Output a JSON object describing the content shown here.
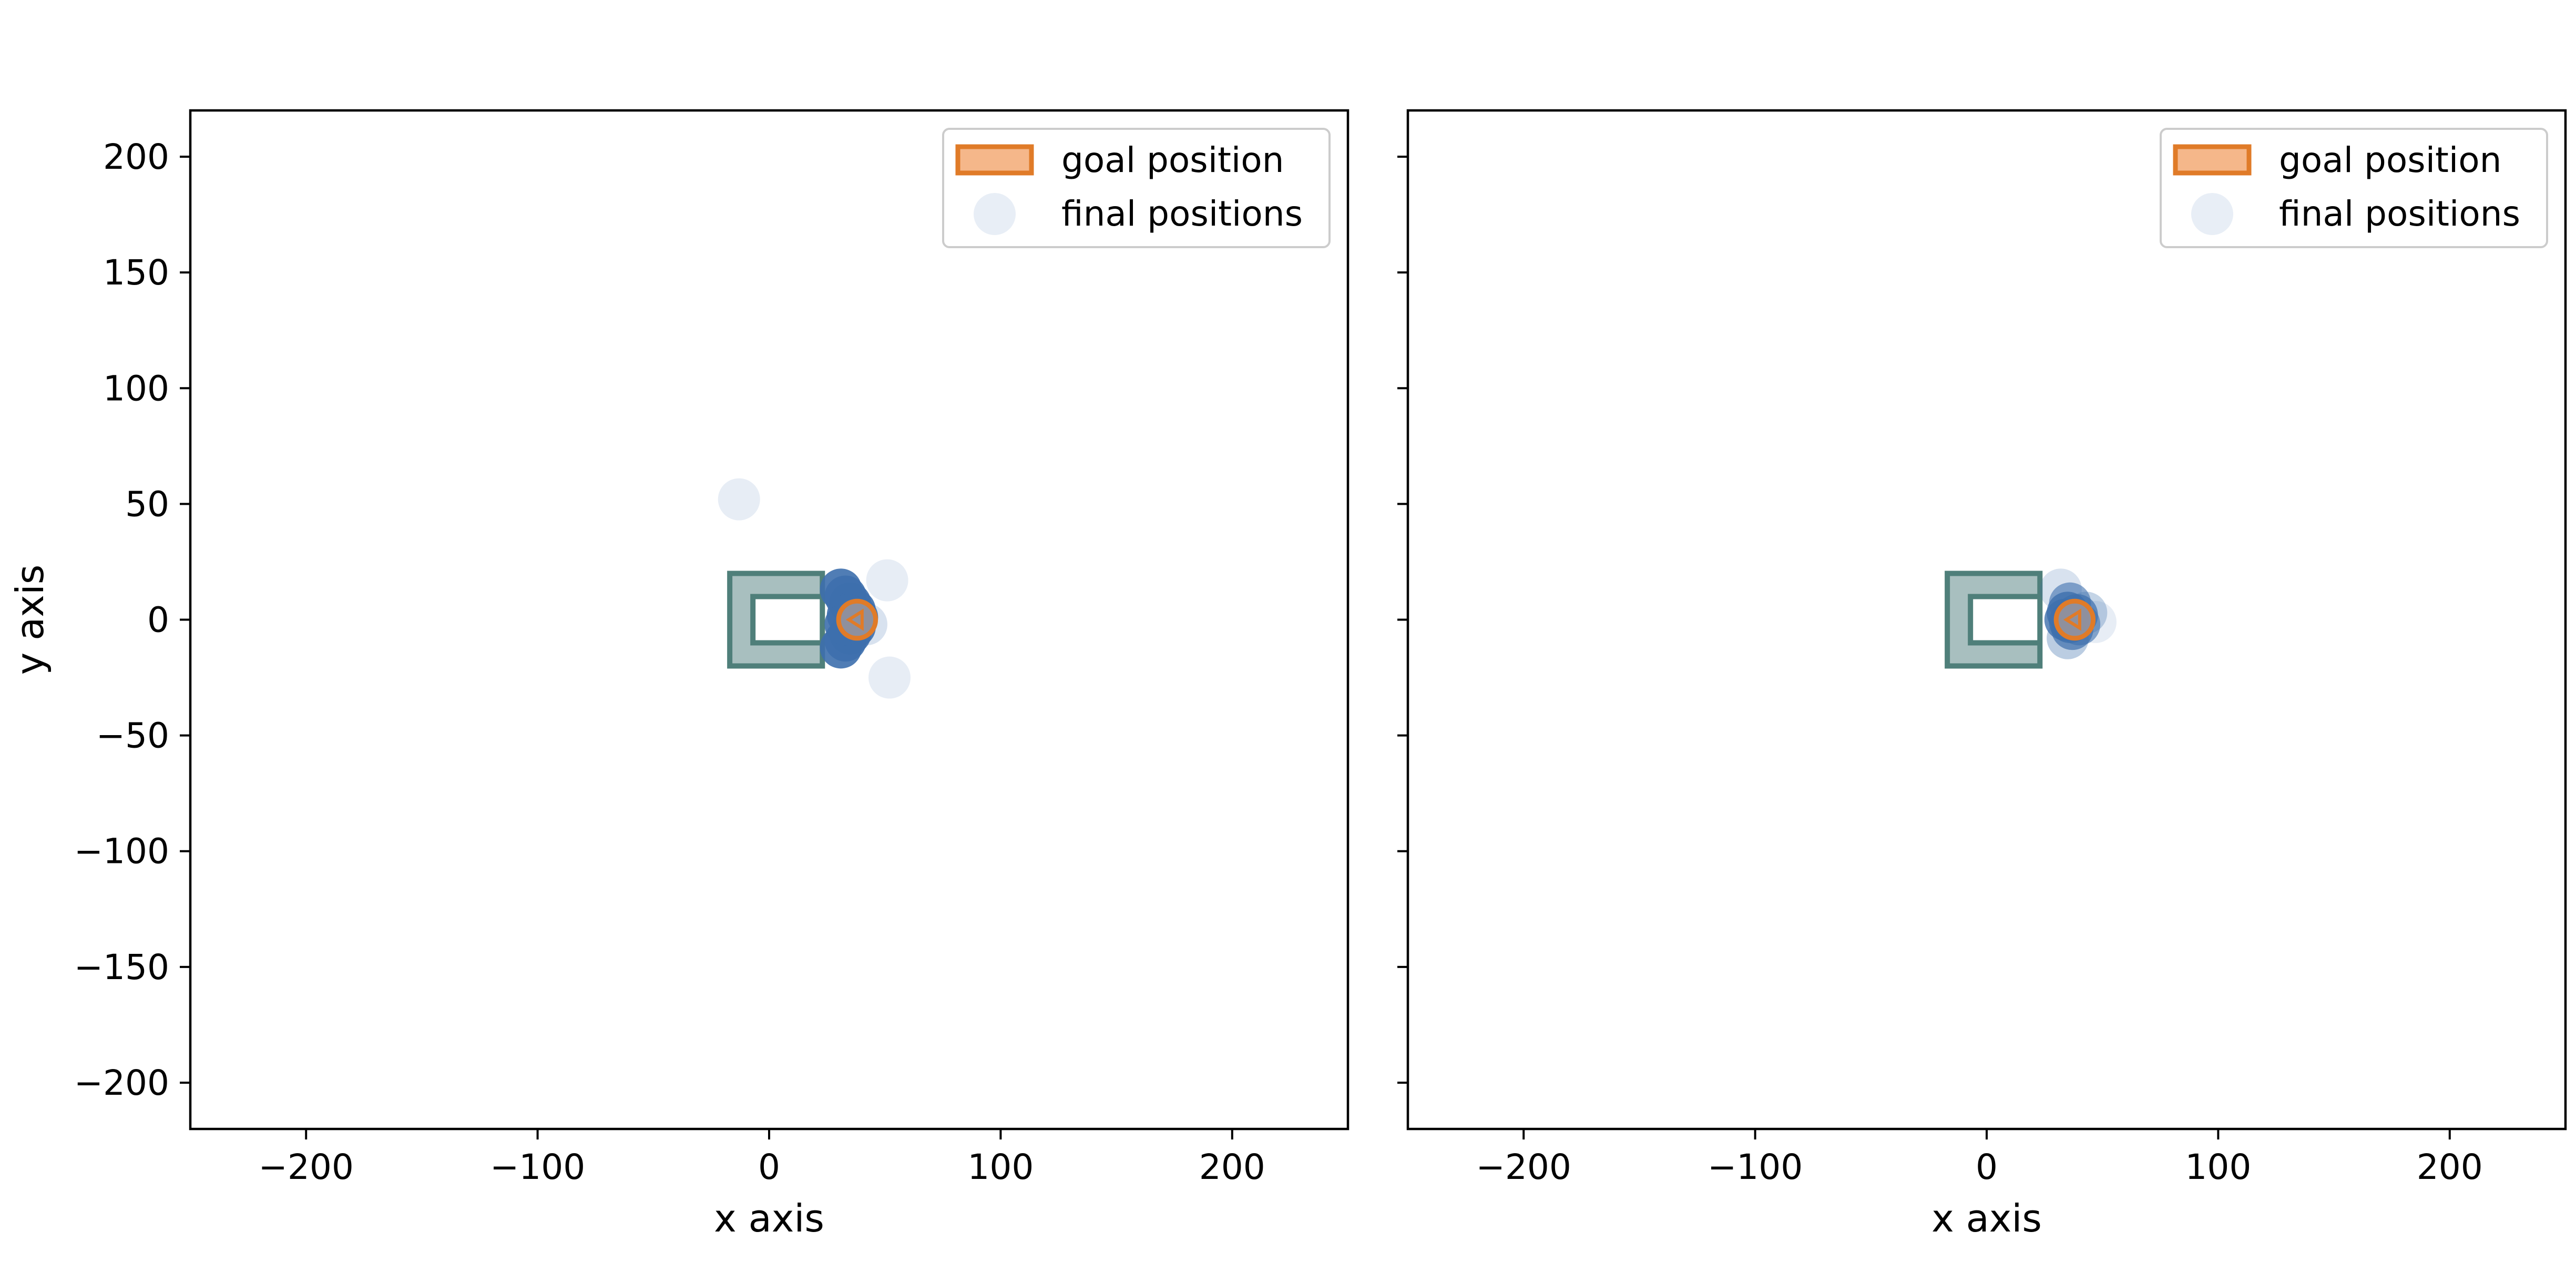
{
  "colors": {
    "goal_face": "#f5b78a",
    "goal_edge": "#e07b28",
    "final_point": "#3d6fad",
    "legend_point": "#e8eef6",
    "gripper_face": "#a8bfbf",
    "gripper_edge": "#4f7f7a"
  },
  "chart_data": [
    {
      "type": "scatter",
      "panel": "left",
      "xlabel": "x axis",
      "ylabel": "y axis",
      "xlim": [
        -250,
        250
      ],
      "ylim": [
        -220,
        220
      ],
      "xticks": [
        -200,
        -100,
        0,
        100,
        200
      ],
      "xtick_labels": [
        "−200",
        "−100",
        "0",
        "100",
        "200"
      ],
      "yticks": [
        200,
        150,
        100,
        50,
        0,
        -50,
        -100,
        -150,
        -200
      ],
      "ytick_labels": [
        "200",
        "150",
        "100",
        "50",
        "0",
        "−50",
        "−100",
        "−150",
        "−200"
      ],
      "show_ytick_labels": true,
      "grid": false,
      "legend_position": "top-right",
      "legend": [
        {
          "label": "goal position",
          "kind": "rect"
        },
        {
          "label": "final positions",
          "kind": "circle"
        }
      ],
      "obstacle": {
        "outer": [
          [
            -17,
            20
          ],
          [
            23,
            20
          ],
          [
            23,
            -20
          ],
          [
            -17,
            -20
          ]
        ],
        "inner": [
          [
            -7,
            10
          ],
          [
            23,
            10
          ],
          [
            23,
            -10
          ],
          [
            -7,
            -10
          ]
        ]
      },
      "goal": {
        "x": 38,
        "y": 0,
        "radius": 8
      },
      "final_positions": [
        {
          "x": -13,
          "y": 52,
          "opacity": 0.12
        },
        {
          "x": 51,
          "y": 17,
          "opacity": 0.12
        },
        {
          "x": 52,
          "y": -25,
          "opacity": 0.12
        },
        {
          "x": 42,
          "y": -2,
          "opacity": 0.2
        },
        {
          "x": 31,
          "y": 13,
          "opacity": 0.9
        },
        {
          "x": 33,
          "y": 10,
          "opacity": 0.9
        },
        {
          "x": 35,
          "y": 7,
          "opacity": 0.9
        },
        {
          "x": 37,
          "y": 4,
          "opacity": 0.9
        },
        {
          "x": 38,
          "y": 1,
          "opacity": 0.9
        },
        {
          "x": 37,
          "y": -3,
          "opacity": 0.9
        },
        {
          "x": 35,
          "y": -6,
          "opacity": 0.9
        },
        {
          "x": 33,
          "y": -9,
          "opacity": 0.9
        },
        {
          "x": 31,
          "y": -12,
          "opacity": 0.9
        },
        {
          "x": 34,
          "y": 2,
          "opacity": 0.9
        },
        {
          "x": 33,
          "y": -2,
          "opacity": 0.9
        }
      ]
    },
    {
      "type": "scatter",
      "panel": "right",
      "xlabel": "x axis",
      "ylabel": "",
      "xlim": [
        -250,
        250
      ],
      "ylim": [
        -220,
        220
      ],
      "xticks": [
        -200,
        -100,
        0,
        100,
        200
      ],
      "xtick_labels": [
        "−200",
        "−100",
        "0",
        "100",
        "200"
      ],
      "yticks": [
        200,
        150,
        100,
        50,
        0,
        -50,
        -100,
        -150,
        -200
      ],
      "ytick_labels": [],
      "show_ytick_labels": false,
      "grid": false,
      "legend_position": "top-right",
      "legend": [
        {
          "label": "goal position",
          "kind": "rect"
        },
        {
          "label": "final positions",
          "kind": "circle"
        }
      ],
      "obstacle": {
        "outer": [
          [
            -17,
            20
          ],
          [
            23,
            20
          ],
          [
            23,
            -20
          ],
          [
            -17,
            -20
          ]
        ],
        "inner": [
          [
            -7,
            10
          ],
          [
            23,
            10
          ],
          [
            23,
            -10
          ],
          [
            -7,
            -10
          ]
        ]
      },
      "goal": {
        "x": 38,
        "y": 0,
        "radius": 8
      },
      "final_positions": [
        {
          "x": 32,
          "y": 13,
          "opacity": 0.2
        },
        {
          "x": 47,
          "y": -1,
          "opacity": 0.12
        },
        {
          "x": 43,
          "y": 3,
          "opacity": 0.3
        },
        {
          "x": 35,
          "y": -8,
          "opacity": 0.35
        },
        {
          "x": 36,
          "y": 7,
          "opacity": 0.6
        },
        {
          "x": 35,
          "y": 3,
          "opacity": 0.8
        },
        {
          "x": 36,
          "y": -1,
          "opacity": 0.8
        },
        {
          "x": 37,
          "y": -4,
          "opacity": 0.7
        },
        {
          "x": 39,
          "y": 2,
          "opacity": 0.7
        },
        {
          "x": 40,
          "y": -2,
          "opacity": 0.6
        },
        {
          "x": 34,
          "y": 0,
          "opacity": 0.8
        }
      ]
    }
  ]
}
